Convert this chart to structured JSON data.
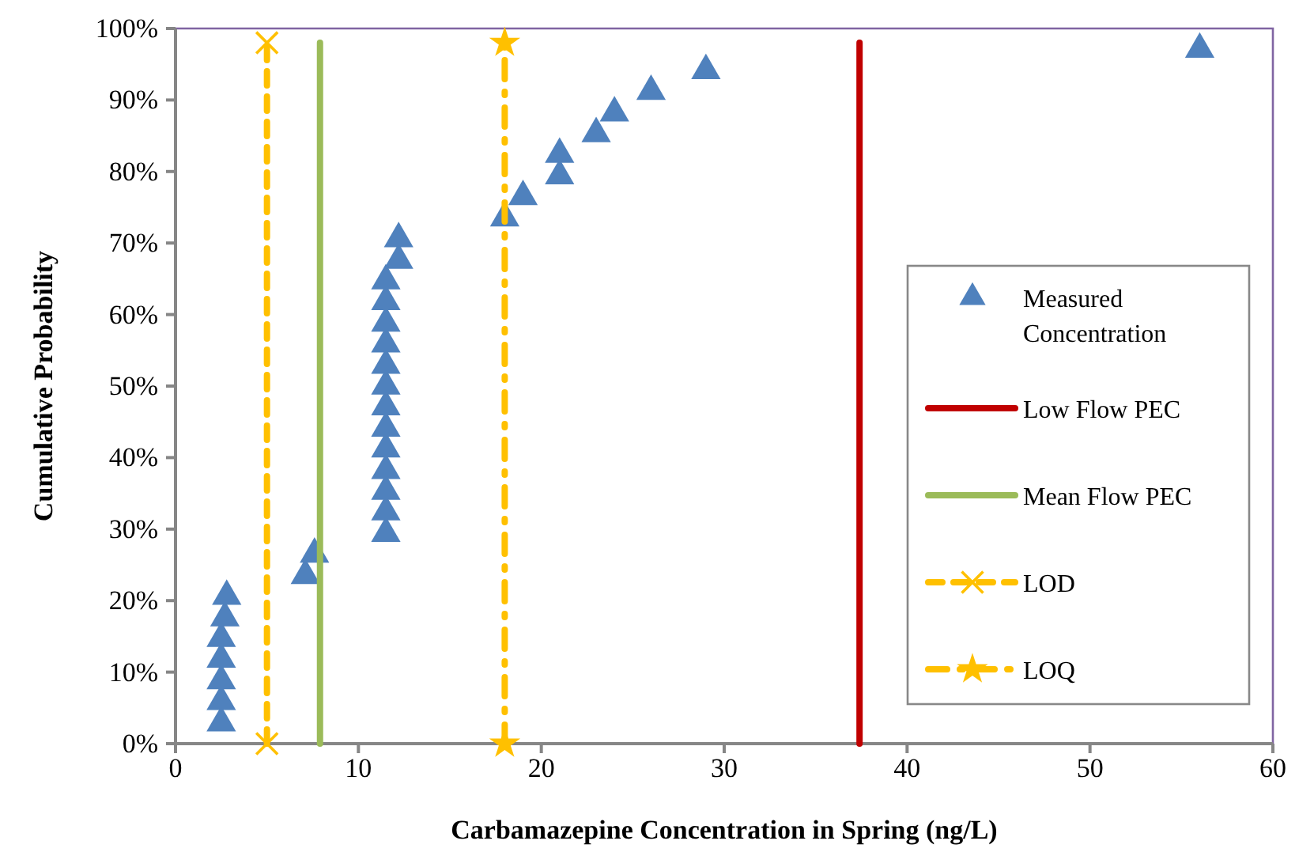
{
  "chart_data": {
    "type": "scatter",
    "xlabel": "Carbamazepine Concentration in Spring (ng/L)",
    "ylabel": "Cumulative Probability",
    "xlim": [
      0,
      60
    ],
    "xticks": [
      0,
      10,
      20,
      30,
      40,
      50,
      60
    ],
    "ylim": [
      0,
      100
    ],
    "yticks": [
      {
        "value": 0,
        "label": "0%"
      },
      {
        "value": 10,
        "label": "10%"
      },
      {
        "value": 20,
        "label": "20%"
      },
      {
        "value": 30,
        "label": "30%"
      },
      {
        "value": 40,
        "label": "40%"
      },
      {
        "value": 50,
        "label": "50%"
      },
      {
        "value": 60,
        "label": "60%"
      },
      {
        "value": 70,
        "label": "70%"
      },
      {
        "value": 80,
        "label": "80%"
      },
      {
        "value": 90,
        "label": "90%"
      },
      {
        "value": 100,
        "label": "100%"
      }
    ],
    "grid": false,
    "legend": "right",
    "series": [
      {
        "name": "Measured Concentration",
        "marker": "triangle",
        "color": "#4f81bd",
        "x": [
          2.5,
          2.5,
          2.5,
          2.5,
          2.5,
          2.7,
          2.8,
          7.1,
          7.6,
          11.5,
          11.5,
          11.5,
          11.5,
          11.5,
          11.5,
          11.5,
          11.5,
          11.5,
          11.5,
          11.5,
          11.5,
          11.5,
          12.2,
          12.2,
          18,
          19,
          21,
          21,
          23,
          24,
          26,
          29,
          56
        ],
        "values": [
          2.9,
          5.9,
          8.8,
          11.8,
          14.7,
          17.6,
          20.6,
          23.5,
          26.5,
          29.4,
          32.4,
          35.3,
          38.2,
          41.2,
          44.1,
          47.1,
          50,
          52.9,
          55.9,
          58.8,
          61.8,
          64.7,
          67.6,
          70.6,
          73.5,
          76.5,
          79.4,
          82.4,
          85.3,
          88.2,
          91.2,
          94.1,
          97.1
        ]
      },
      {
        "name": "Low Flow PEC",
        "type": "line",
        "marker": "none",
        "line_style": "solid",
        "color": "#c00000",
        "x": [
          37.4,
          37.4
        ],
        "values": [
          0,
          98
        ]
      },
      {
        "name": "Mean Flow PEC",
        "type": "line",
        "marker": "none",
        "line_style": "solid",
        "color": "#9bbb59",
        "x": [
          7.9,
          7.9
        ],
        "values": [
          0,
          98
        ]
      },
      {
        "name": "LOD",
        "type": "line",
        "marker": "cross",
        "line_style": "dashed",
        "color": "#ffc000",
        "x": [
          5,
          5
        ],
        "values": [
          0,
          98
        ]
      },
      {
        "name": "LOQ",
        "type": "line",
        "marker": "star",
        "line_style": "dotted",
        "color": "#ffc000",
        "x": [
          18,
          18
        ],
        "values": [
          0,
          98
        ]
      }
    ]
  }
}
